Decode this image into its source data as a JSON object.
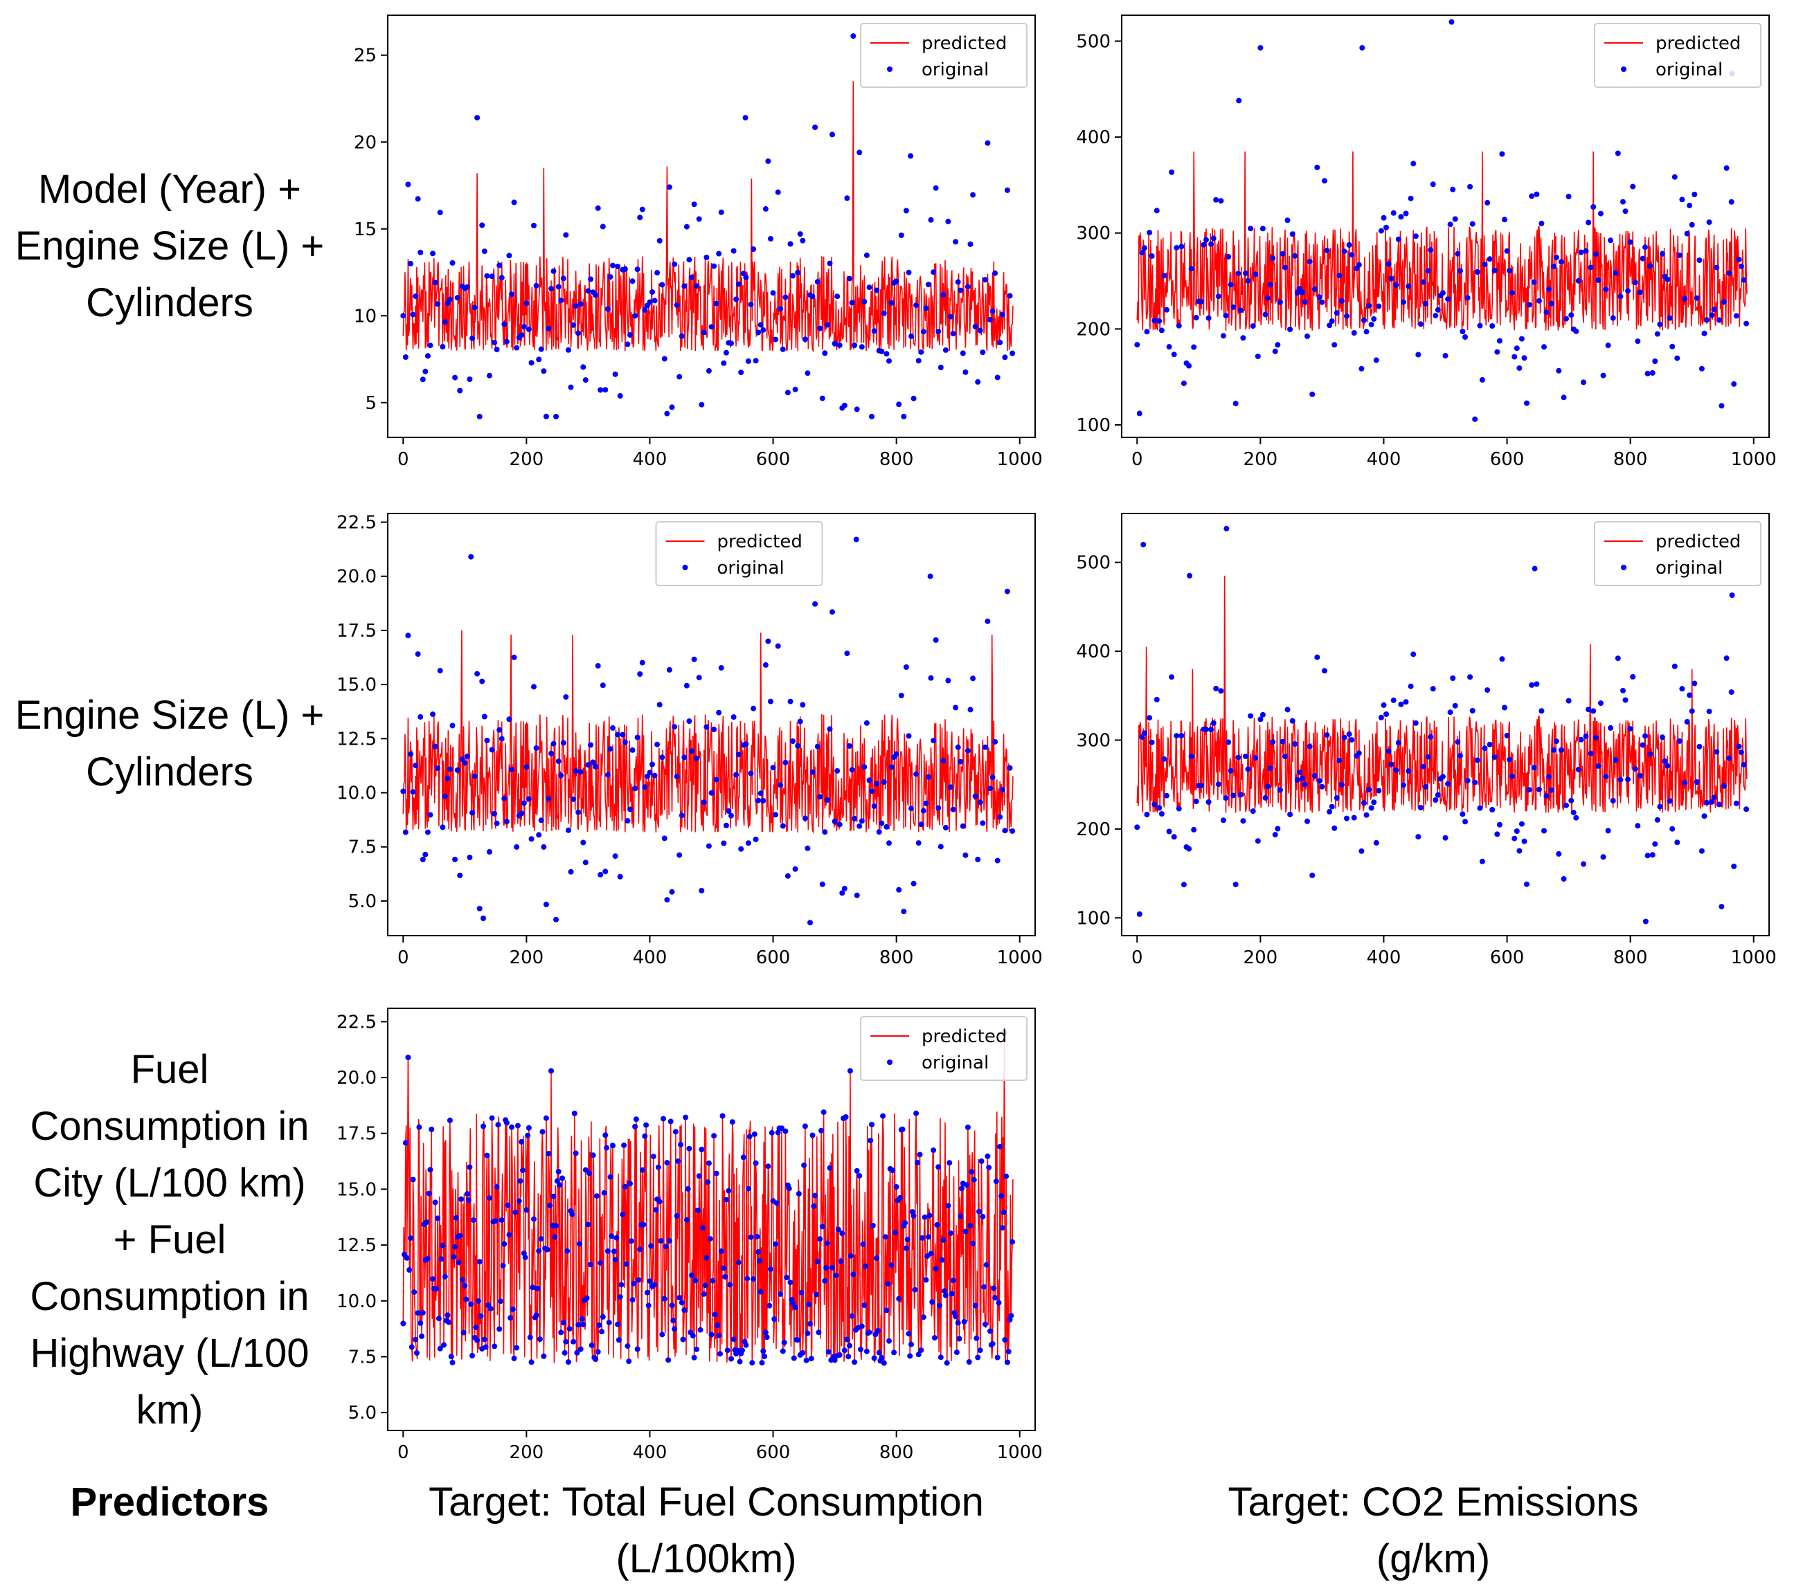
{
  "row_labels": [
    "Model (Year) +\nEngine Size (L) +\nCylinders",
    "Engine Size (L) +\nCylinders",
    "Fuel\nConsumption in\nCity (L/100 km)\n+ Fuel\nConsumption in\nHighway (L/100\nkm)"
  ],
  "footer": {
    "predictors": "Predictors",
    "target_fuel": "Target: Total Fuel Consumption\n(L/100km)",
    "target_co2": "Target: CO2 Emissions\n(g/km)"
  },
  "legend": {
    "predicted": "predicted",
    "original": "original"
  },
  "colors": {
    "predicted": "#ff0000",
    "original": "#0000ff"
  },
  "chart_data": [
    {
      "type": "line",
      "panel": "row1-fuel",
      "xlim": [
        -25,
        1025
      ],
      "ylim": [
        3,
        27.3
      ],
      "xticks": [
        0,
        200,
        400,
        600,
        800,
        1000
      ],
      "yticks": [
        5,
        10,
        15,
        20,
        25
      ],
      "ytick_labels": [
        "5",
        "10",
        "15",
        "20",
        "25"
      ],
      "legend_position": "upper right",
      "n": 990,
      "series": [
        {
          "name": "predicted",
          "style": "line",
          "range": [
            6.8,
            14.6
          ],
          "spikes": [
            [
              730,
              23.5
            ],
            [
              120,
              18.2
            ],
            [
              228,
              18.5
            ],
            [
              428,
              18.6
            ],
            [
              565,
              17.9
            ]
          ]
        },
        {
          "name": "original",
          "style": "scatter",
          "range": [
            4.2,
            21.5
          ],
          "notable": [
            [
              730,
              26.1
            ],
            [
              120,
              21.4
            ],
            [
              555,
              21.4
            ],
            [
              740,
              19.4
            ],
            [
              823,
              19.2
            ],
            [
              760,
              4.2
            ]
          ]
        }
      ]
    },
    {
      "type": "line",
      "panel": "row1-co2",
      "xlim": [
        -25,
        1025
      ],
      "ylim": [
        87,
        527
      ],
      "xticks": [
        0,
        200,
        400,
        600,
        800,
        1000
      ],
      "yticks": [
        100,
        200,
        300,
        400,
        500
      ],
      "ytick_labels": [
        "100",
        "200",
        "300",
        "400",
        "500"
      ],
      "legend_position": "upper right",
      "n": 990,
      "series": [
        {
          "name": "predicted",
          "style": "line",
          "range": [
            175,
            330
          ],
          "spikes": [
            [
              92,
              385
            ],
            [
              175,
              385
            ],
            [
              350,
              385
            ],
            [
              560,
              385
            ],
            [
              740,
              385
            ]
          ]
        },
        {
          "name": "original",
          "style": "scatter",
          "range": [
            108,
            400
          ],
          "notable": [
            [
              510,
              520
            ],
            [
              200,
              493
            ],
            [
              365,
              493
            ],
            [
              965,
              466
            ],
            [
              165,
              438
            ],
            [
              548,
              106
            ]
          ]
        }
      ]
    },
    {
      "type": "line",
      "panel": "row2-fuel",
      "xlim": [
        -25,
        1025
      ],
      "ylim": [
        3.4,
        22.9
      ],
      "xticks": [
        0,
        200,
        400,
        600,
        800,
        1000
      ],
      "yticks": [
        5,
        7.5,
        10,
        12.5,
        15,
        17.5,
        20,
        22.5
      ],
      "ytick_labels": [
        "5.0",
        "7.5",
        "10.0",
        "12.5",
        "15.0",
        "17.5",
        "20.0",
        "22.5"
      ],
      "legend_position": "upper center",
      "n": 990,
      "series": [
        {
          "name": "predicted",
          "style": "line",
          "range": [
            7.0,
            14.8
          ],
          "spikes": [
            [
              95,
              17.5
            ],
            [
              175,
              17.3
            ],
            [
              275,
              17.3
            ],
            [
              580,
              17.4
            ],
            [
              955,
              17.3
            ]
          ]
        },
        {
          "name": "original",
          "style": "scatter",
          "range": [
            4.0,
            19.3
          ],
          "notable": [
            [
              735,
              21.7
            ],
            [
              110,
              20.9
            ],
            [
              855,
              20.0
            ],
            [
              980,
              19.3
            ],
            [
              130,
              4.2
            ],
            [
              660,
              4.0
            ]
          ]
        }
      ]
    },
    {
      "type": "line",
      "panel": "row2-co2",
      "xlim": [
        -25,
        1025
      ],
      "ylim": [
        80,
        555
      ],
      "xticks": [
        0,
        200,
        400,
        600,
        800,
        1000
      ],
      "yticks": [
        100,
        200,
        300,
        400,
        500
      ],
      "ytick_labels": [
        "100",
        "200",
        "300",
        "400",
        "500"
      ],
      "legend_position": "upper right",
      "n": 990,
      "series": [
        {
          "name": "predicted",
          "style": "line",
          "range": [
            195,
            350
          ],
          "spikes": [
            [
              142,
              485
            ],
            [
              15,
              405
            ],
            [
              90,
              380
            ],
            [
              735,
              408
            ],
            [
              900,
              380
            ]
          ]
        },
        {
          "name": "original",
          "style": "scatter",
          "range": [
            100,
            410
          ],
          "notable": [
            [
              145,
              538
            ],
            [
              10,
              520
            ],
            [
              645,
              493
            ],
            [
              85,
              485
            ],
            [
              825,
              466
            ],
            [
              965,
              463
            ],
            [
              825,
              96
            ]
          ]
        }
      ]
    },
    {
      "type": "line",
      "panel": "row3-fuel",
      "xlim": [
        -25,
        1025
      ],
      "ylim": [
        4.2,
        23.1
      ],
      "xticks": [
        0,
        200,
        400,
        600,
        800,
        1000
      ],
      "yticks": [
        5,
        7.5,
        10,
        12.5,
        15,
        17.5,
        20,
        22.5
      ],
      "ytick_labels": [
        "5.0",
        "7.5",
        "10.0",
        "12.5",
        "15.0",
        "17.5",
        "20.0",
        "22.5"
      ],
      "legend_position": "upper right",
      "n": 990,
      "series": [
        {
          "name": "predicted",
          "style": "line",
          "range": [
            4.8,
            20.9
          ],
          "spikes": [
            [
              8,
              20.9
            ],
            [
              975,
              22.0
            ],
            [
              240,
              20.3
            ],
            [
              725,
              20.3
            ]
          ]
        },
        {
          "name": "original",
          "style": "scatter",
          "range": [
            4.8,
            20.9
          ],
          "notable": [
            [
              8,
              20.9
            ],
            [
              975,
              22.0
            ],
            [
              240,
              20.3
            ],
            [
              725,
              20.3
            ],
            [
              750,
              4.8
            ]
          ]
        }
      ]
    }
  ]
}
